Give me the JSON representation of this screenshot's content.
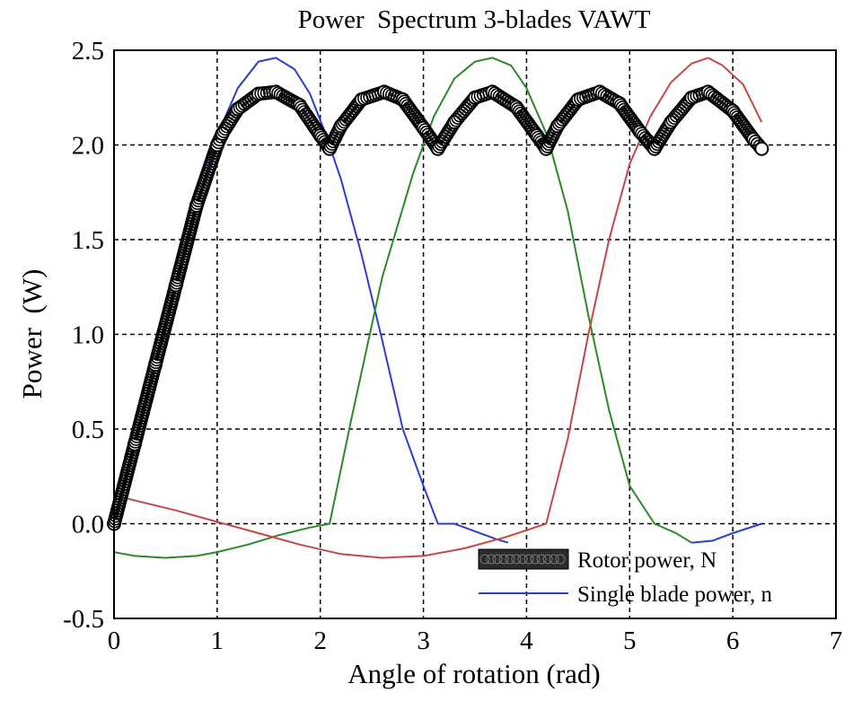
{
  "chart_data": {
    "type": "line",
    "title": "Power  Spectrum 3-blades VAWT",
    "xlabel": "Angle of rotation (rad)",
    "ylabel": "Power  (W)",
    "xlim": [
      0,
      7
    ],
    "ylim": [
      -0.5,
      2.5
    ],
    "xticks": [
      "0",
      "1",
      "2",
      "3",
      "4",
      "5",
      "6",
      "7"
    ],
    "yticks": [
      "-0.5",
      "0.0",
      "0.5",
      "1.0",
      "1.5",
      "2.0",
      "2.5"
    ],
    "grid": true,
    "legend_position": "bottom-right",
    "series": [
      {
        "name": "Rotor power, N",
        "style": "markers",
        "color": "#000000",
        "x": [
          0.0,
          0.2,
          0.4,
          0.6,
          0.8,
          1.0,
          1.05,
          1.2,
          1.4,
          1.57,
          1.8,
          2.0,
          2.09,
          2.2,
          2.4,
          2.62,
          2.8,
          3.0,
          3.14,
          3.3,
          3.5,
          3.67,
          3.9,
          4.1,
          4.19,
          4.3,
          4.5,
          4.71,
          4.9,
          5.1,
          5.24,
          5.4,
          5.6,
          5.76,
          6.0,
          6.2,
          6.28
        ],
        "y": [
          0.0,
          0.42,
          0.84,
          1.26,
          1.68,
          2.0,
          2.06,
          2.19,
          2.27,
          2.28,
          2.21,
          2.05,
          1.98,
          2.1,
          2.24,
          2.28,
          2.24,
          2.09,
          1.98,
          2.12,
          2.25,
          2.28,
          2.2,
          2.05,
          1.98,
          2.1,
          2.24,
          2.28,
          2.22,
          2.07,
          1.98,
          2.12,
          2.25,
          2.28,
          2.18,
          2.03,
          1.98
        ]
      },
      {
        "name": "Single blade power, n",
        "style": "line",
        "color": "#2b3fd0",
        "x": [
          0.0,
          0.2,
          0.4,
          0.6,
          0.8,
          1.0,
          1.2,
          1.4,
          1.57,
          1.75,
          1.9,
          2.05,
          2.2,
          2.4,
          2.6,
          2.8,
          3.0,
          3.14,
          3.3,
          3.5,
          3.7,
          3.82
        ],
        "y": [
          0.0,
          0.42,
          0.84,
          1.26,
          1.68,
          2.05,
          2.3,
          2.44,
          2.46,
          2.4,
          2.27,
          2.06,
          1.82,
          1.42,
          0.97,
          0.5,
          0.2,
          0.0,
          0.0,
          -0.04,
          -0.08,
          -0.1
        ],
        "x2": [
          5.6,
          5.8,
          6.0,
          6.28
        ],
        "y2": [
          -0.1,
          -0.09,
          -0.05,
          0.0
        ]
      },
      {
        "color": "#2a8a2a",
        "style": "line",
        "x": [
          0.0,
          0.2,
          0.5,
          0.8,
          1.0,
          1.3,
          1.6,
          1.9,
          2.09,
          2.3,
          2.6,
          2.9,
          3.1,
          3.3,
          3.5,
          3.67,
          3.85,
          4.0,
          4.2,
          4.4,
          4.6,
          4.8,
          5.0,
          5.24,
          5.45,
          5.6
        ],
        "y": [
          -0.15,
          -0.17,
          -0.18,
          -0.17,
          -0.15,
          -0.11,
          -0.06,
          -0.02,
          0.0,
          0.55,
          1.3,
          1.85,
          2.15,
          2.35,
          2.44,
          2.46,
          2.42,
          2.3,
          2.05,
          1.65,
          1.1,
          0.6,
          0.2,
          0.0,
          -0.05,
          -0.1
        ]
      },
      {
        "color": "#c44848",
        "style": "line",
        "x": [
          0.0,
          0.3,
          0.6,
          1.0,
          1.4,
          1.8,
          2.2,
          2.6,
          3.0,
          3.4,
          3.8,
          4.19,
          4.4,
          4.6,
          4.8,
          5.0,
          5.2,
          5.4,
          5.6,
          5.76,
          5.9,
          6.1,
          6.28
        ],
        "y": [
          0.15,
          0.11,
          0.07,
          0.01,
          -0.05,
          -0.11,
          -0.16,
          -0.18,
          -0.17,
          -0.13,
          -0.07,
          0.0,
          0.45,
          1.0,
          1.5,
          1.9,
          2.15,
          2.33,
          2.43,
          2.46,
          2.42,
          2.32,
          2.12
        ]
      }
    ]
  }
}
